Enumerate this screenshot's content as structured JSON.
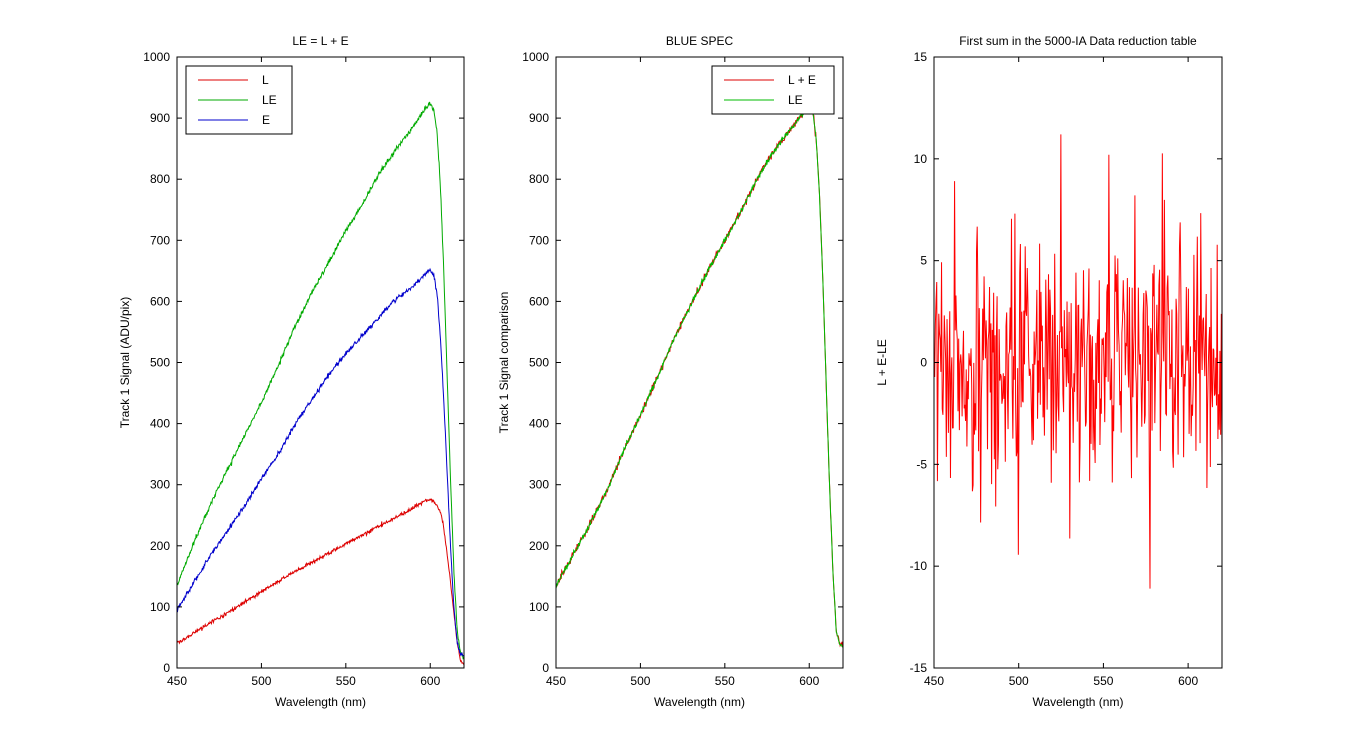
{
  "chart_data": [
    {
      "type": "line",
      "title": "LE = L + E",
      "xlabel": "Wavelength (nm)",
      "ylabel": "Track 1 Signal (ADU/pix)",
      "xlim": [
        450,
        620
      ],
      "ylim": [
        0,
        1000
      ],
      "xticks": [
        450,
        500,
        550,
        600
      ],
      "yticks": [
        0,
        100,
        200,
        300,
        400,
        500,
        600,
        700,
        800,
        900,
        1000
      ],
      "legend_position": "top-left",
      "series": [
        {
          "name": "L",
          "color": "#dd0000",
          "noise": 1.5,
          "x": [
            450,
            460,
            470,
            480,
            490,
            500,
            510,
            520,
            530,
            540,
            550,
            560,
            570,
            580,
            590,
            597,
            600,
            602,
            604,
            606,
            608,
            610,
            612,
            614,
            616,
            618,
            620
          ],
          "y": [
            40,
            57,
            75,
            90,
            108,
            125,
            142,
            158,
            173,
            188,
            203,
            218,
            233,
            247,
            262,
            274,
            275,
            273,
            266,
            255,
            230,
            185,
            140,
            90,
            40,
            12,
            5
          ]
        },
        {
          "name": "LE",
          "color": "#00aa00",
          "noise": 2,
          "x": [
            450,
            460,
            470,
            480,
            490,
            500,
            510,
            520,
            530,
            540,
            550,
            560,
            570,
            580,
            590,
            597,
            600,
            602,
            604,
            606,
            608,
            610,
            612,
            614,
            616,
            618,
            620
          ],
          "y": [
            135,
            205,
            270,
            325,
            380,
            435,
            495,
            560,
            615,
            665,
            715,
            760,
            810,
            850,
            885,
            915,
            925,
            915,
            880,
            790,
            650,
            480,
            310,
            160,
            60,
            25,
            15
          ]
        },
        {
          "name": "E",
          "color": "#0000cc",
          "noise": 2,
          "x": [
            450,
            460,
            470,
            480,
            490,
            500,
            510,
            520,
            530,
            540,
            550,
            560,
            570,
            580,
            590,
            597,
            600,
            602,
            604,
            606,
            608,
            610,
            612,
            614,
            616,
            618,
            620
          ],
          "y": [
            95,
            140,
            185,
            225,
            265,
            310,
            350,
            400,
            440,
            480,
            515,
            545,
            575,
            605,
            625,
            645,
            652,
            645,
            615,
            540,
            440,
            320,
            200,
            100,
            40,
            22,
            20
          ]
        }
      ]
    },
    {
      "type": "line",
      "title": "BLUE SPEC",
      "xlabel": "Wavelength (nm)",
      "ylabel": "Track 1 Signal comparison",
      "xlim": [
        450,
        620
      ],
      "ylim": [
        0,
        1000
      ],
      "xticks": [
        450,
        500,
        550,
        600
      ],
      "yticks": [
        0,
        100,
        200,
        300,
        400,
        500,
        600,
        700,
        800,
        900,
        1000
      ],
      "legend_position": "top-right",
      "series": [
        {
          "name": "L + E",
          "color": "#dd0000",
          "noise": 3,
          "x": [
            450,
            460,
            470,
            480,
            490,
            500,
            510,
            520,
            530,
            540,
            550,
            560,
            570,
            580,
            590,
            597,
            600,
            602,
            604,
            606,
            608,
            610,
            612,
            614,
            616,
            618,
            620
          ],
          "y": [
            135,
            185,
            235,
            290,
            355,
            415,
            475,
            540,
            595,
            650,
            700,
            750,
            805,
            850,
            885,
            910,
            920,
            912,
            870,
            780,
            640,
            470,
            300,
            160,
            60,
            40,
            35
          ]
        },
        {
          "name": "LE",
          "color": "#00bb00",
          "noise": 2,
          "x": [
            450,
            460,
            470,
            480,
            490,
            500,
            510,
            520,
            530,
            540,
            550,
            560,
            570,
            580,
            590,
            597,
            600,
            602,
            604,
            606,
            608,
            610,
            612,
            614,
            616,
            618,
            620
          ],
          "y": [
            135,
            185,
            235,
            290,
            355,
            415,
            475,
            540,
            595,
            650,
            700,
            750,
            805,
            850,
            885,
            910,
            920,
            912,
            870,
            780,
            640,
            470,
            300,
            160,
            60,
            40,
            35
          ]
        }
      ]
    },
    {
      "type": "line",
      "title": "First sum in the 5000-IA Data reduction table",
      "xlabel": "Wavelength (nm)",
      "ylabel": "L + E-LE",
      "xlim": [
        450,
        620
      ],
      "ylim": [
        -15,
        15
      ],
      "xticks": [
        450,
        500,
        550,
        600
      ],
      "yticks": [
        -15,
        -10,
        -5,
        0,
        5,
        10,
        15
      ],
      "series": [
        {
          "name": "L + E-LE",
          "color": "#ff0000",
          "noise_sd": 3.2,
          "peak_max": 11.2,
          "peak_min": -11.1
        }
      ]
    }
  ]
}
